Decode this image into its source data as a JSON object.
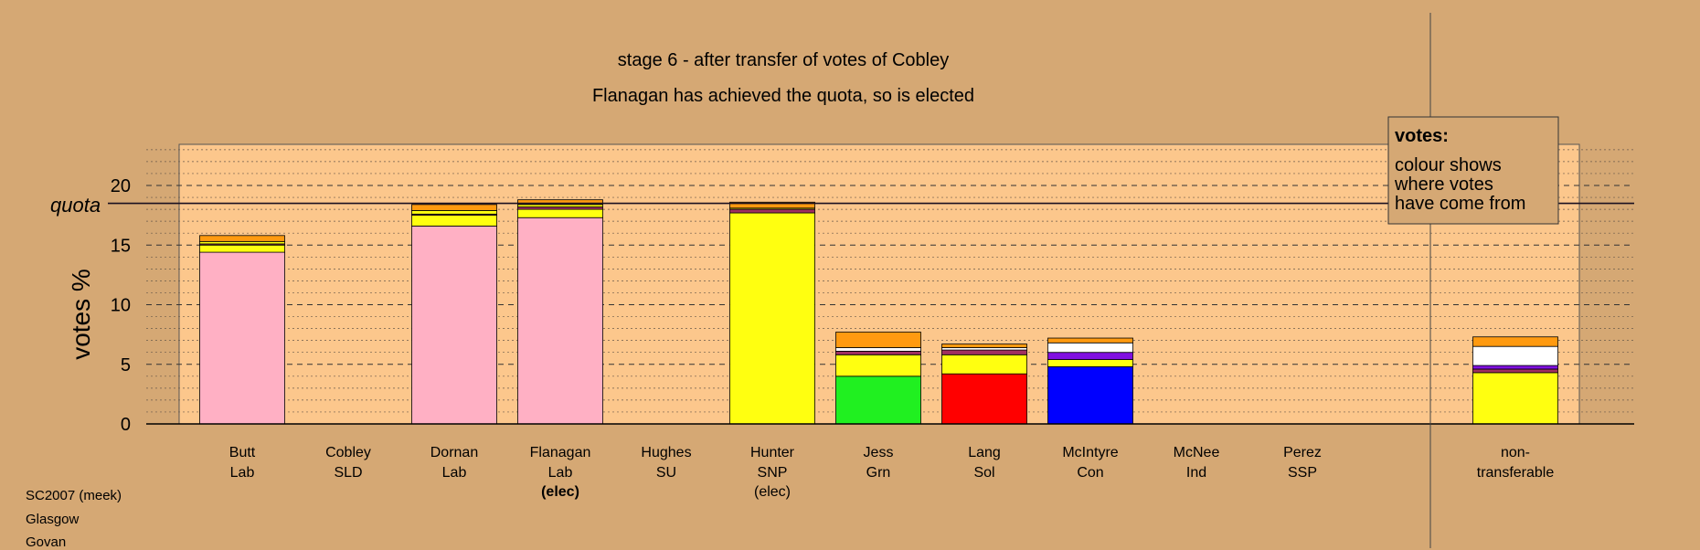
{
  "title": "stage 6 - after transfer of votes of Cobley",
  "subtitle": "Flanagan has achieved the quota, so is elected",
  "legend": {
    "heading": "votes:",
    "lines": [
      "colour shows",
      "where votes",
      "have come from"
    ]
  },
  "footer": [
    "SC2007 (meek)",
    "Glasgow",
    "Govan"
  ],
  "colors": {
    "Lab": "#ffb0c4",
    "SNP": "#ffff10",
    "Grn": "#20f020",
    "Sol": "#ff0000",
    "Con": "#0000ff",
    "SLD": "#ff9a10",
    "SU": "#8010e0",
    "Ind": "#a03060",
    "SSP": "#ffffff",
    "plot_bg": "#fcc78c",
    "page_bg": "#d5a874"
  },
  "chart_data": {
    "type": "bar",
    "stacked": true,
    "ylabel": "votes %",
    "ylim": [
      0,
      23
    ],
    "yticks": [
      0,
      5,
      10,
      15,
      20
    ],
    "quota": 18.5,
    "quota_label": "quota",
    "bars": [
      {
        "name": "Butt",
        "party": "Lab",
        "status": "",
        "segments": [
          {
            "from": "Lab",
            "value": 14.4
          },
          {
            "from": "SNP",
            "value": 0.6
          },
          {
            "from": "Ind",
            "value": 0.1
          },
          {
            "from": "SNP",
            "value": 0.2
          },
          {
            "from": "SLD",
            "value": 0.5
          }
        ]
      },
      {
        "name": "Cobley",
        "party": "SLD",
        "status": "",
        "segments": []
      },
      {
        "name": "Dornan",
        "party": "Lab",
        "status": "",
        "segments": [
          {
            "from": "Lab",
            "value": 16.6
          },
          {
            "from": "SNP",
            "value": 0.9
          },
          {
            "from": "Ind",
            "value": 0.1
          },
          {
            "from": "SNP",
            "value": 0.3
          },
          {
            "from": "SLD",
            "value": 0.5
          }
        ]
      },
      {
        "name": "Flanagan",
        "party": "Lab",
        "status": "(elec)",
        "segments": [
          {
            "from": "Lab",
            "value": 17.3
          },
          {
            "from": "SNP",
            "value": 0.7
          },
          {
            "from": "Ind",
            "value": 0.2
          },
          {
            "from": "SNP",
            "value": 0.2
          },
          {
            "from": "SLD",
            "value": 0.4
          }
        ]
      },
      {
        "name": "Hughes",
        "party": "SU",
        "status": "",
        "segments": []
      },
      {
        "name": "Hunter",
        "party": "SNP",
        "status": "(elec)",
        "segments": [
          {
            "from": "SNP",
            "value": 17.7
          },
          {
            "from": "Ind",
            "value": 0.3
          },
          {
            "from": "SNP",
            "value": 0.1
          },
          {
            "from": "SLD",
            "value": 0.5
          }
        ]
      },
      {
        "name": "Jess",
        "party": "Grn",
        "status": "",
        "segments": [
          {
            "from": "Grn",
            "value": 4.0
          },
          {
            "from": "SNP",
            "value": 1.8
          },
          {
            "from": "Ind",
            "value": 0.3
          },
          {
            "from": "SSP",
            "value": 0.3
          },
          {
            "from": "SLD",
            "value": 1.3
          }
        ]
      },
      {
        "name": "Lang",
        "party": "Sol",
        "status": "",
        "segments": [
          {
            "from": "Sol",
            "value": 4.2
          },
          {
            "from": "SNP",
            "value": 1.6
          },
          {
            "from": "Ind",
            "value": 0.4
          },
          {
            "from": "SSP",
            "value": 0.2
          },
          {
            "from": "SLD",
            "value": 0.3
          }
        ]
      },
      {
        "name": "McIntyre",
        "party": "Con",
        "status": "",
        "segments": [
          {
            "from": "Con",
            "value": 4.8
          },
          {
            "from": "SNP",
            "value": 0.6
          },
          {
            "from": "SU",
            "value": 0.6
          },
          {
            "from": "SSP",
            "value": 0.8
          },
          {
            "from": "SLD",
            "value": 0.4
          }
        ]
      },
      {
        "name": "McNee",
        "party": "Ind",
        "status": "",
        "segments": []
      },
      {
        "name": "Perez",
        "party": "SSP",
        "status": "",
        "segments": []
      },
      {
        "name": "non-",
        "party": "transferable",
        "status": "",
        "segments": [
          {
            "from": "SNP",
            "value": 4.3
          },
          {
            "from": "Ind",
            "value": 0.3
          },
          {
            "from": "SU",
            "value": 0.3
          },
          {
            "from": "SSP",
            "value": 1.6
          },
          {
            "from": "SLD",
            "value": 0.8
          }
        ]
      }
    ]
  }
}
